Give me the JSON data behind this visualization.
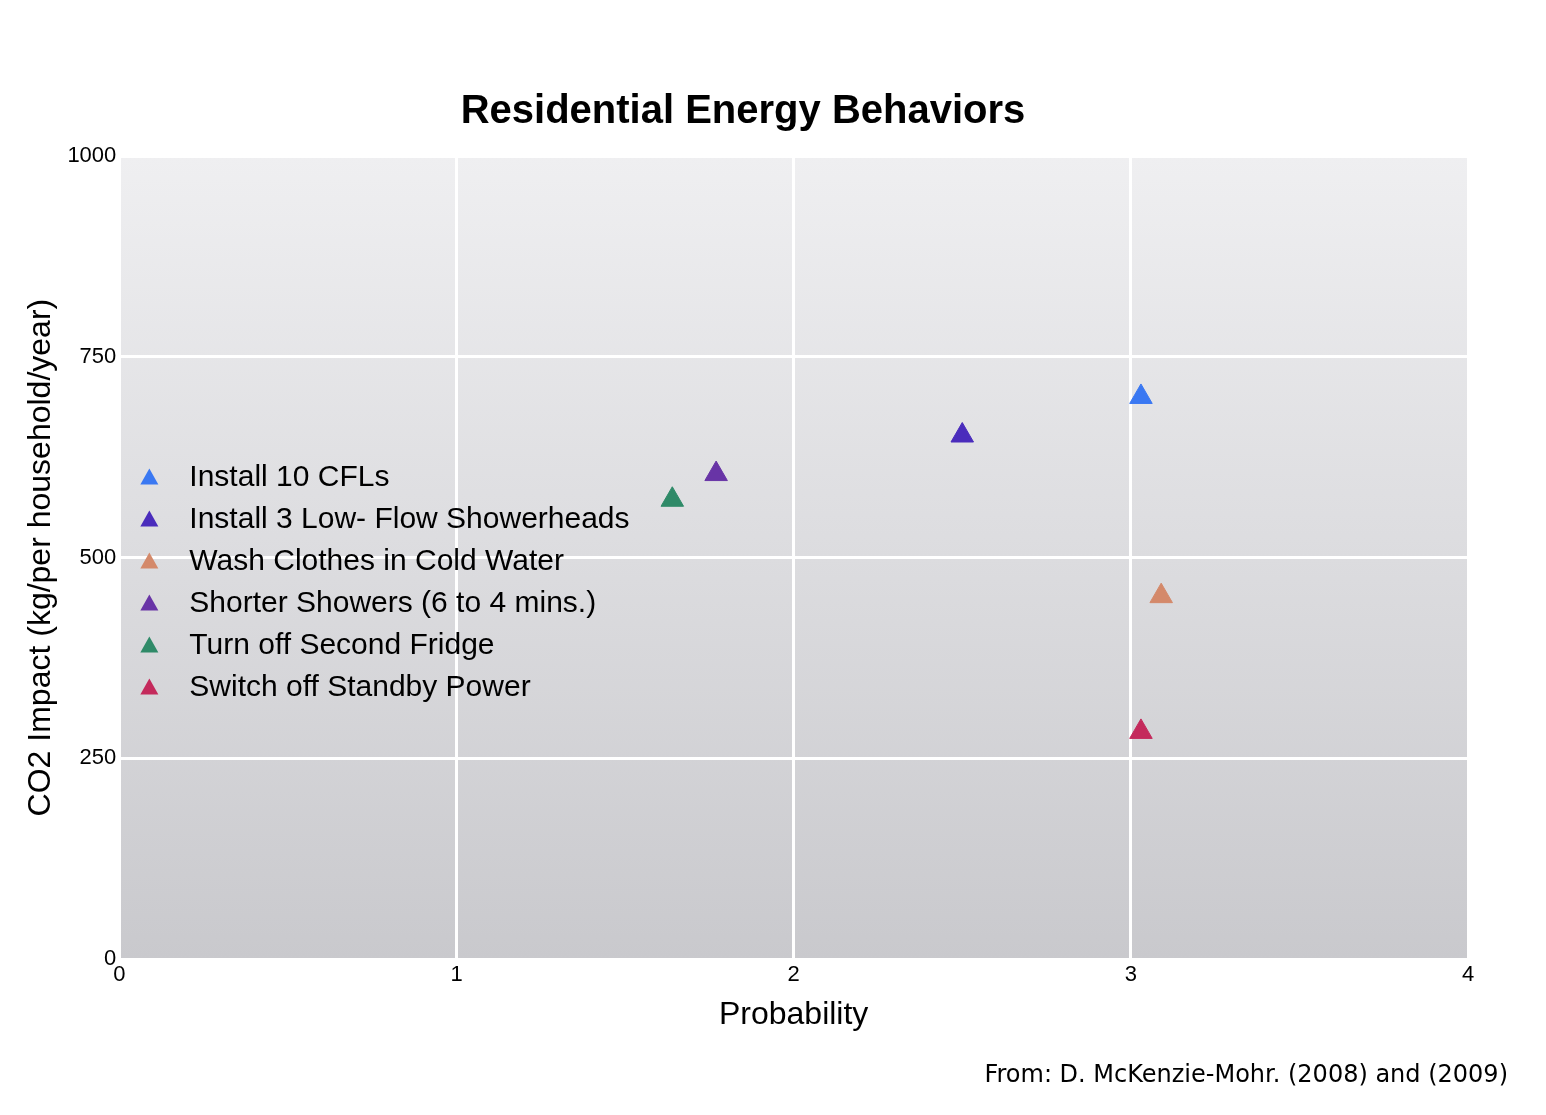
{
  "chart_data": {
    "type": "scatter",
    "title": "Residential Energy Behaviors",
    "xlabel": "Probability",
    "ylabel": "CO2 Impact (kg/per household/year)",
    "series": [
      {
        "name": "Install 10 CFLs",
        "color": "#3a78f2",
        "x": [
          3.03
        ],
        "values": [
          700
        ]
      },
      {
        "name": "Install 3 Low- Flow Showerheads",
        "color": "#4a2cbc",
        "x": [
          2.5
        ],
        "values": [
          652
        ]
      },
      {
        "name": "Wash Clothes in Cold Water",
        "color": "#d4896a",
        "x": [
          3.09
        ],
        "values": [
          452
        ]
      },
      {
        "name": "Shorter Showers (6 to 4 mins.)",
        "color": "#6834a6",
        "x": [
          1.77
        ],
        "values": [
          604
        ]
      },
      {
        "name": "Turn off Second Fridge",
        "color": "#2f8a68",
        "x": [
          1.64
        ],
        "values": [
          572
        ]
      },
      {
        "name": "Switch off Standby Power",
        "color": "#c42a5c",
        "x": [
          3.03
        ],
        "values": [
          283
        ]
      }
    ],
    "xlim": [
      0,
      4
    ],
    "xticks": [
      0,
      1,
      2,
      3,
      4
    ],
    "ylim": [
      0,
      1000
    ],
    "yticks": [
      0,
      250,
      500,
      750,
      1000
    ],
    "grid": true,
    "legend": "left",
    "marker": "triangle",
    "annotations": [
      "From: D. McKenzie-Mohr. (2008) and (2009)"
    ]
  }
}
